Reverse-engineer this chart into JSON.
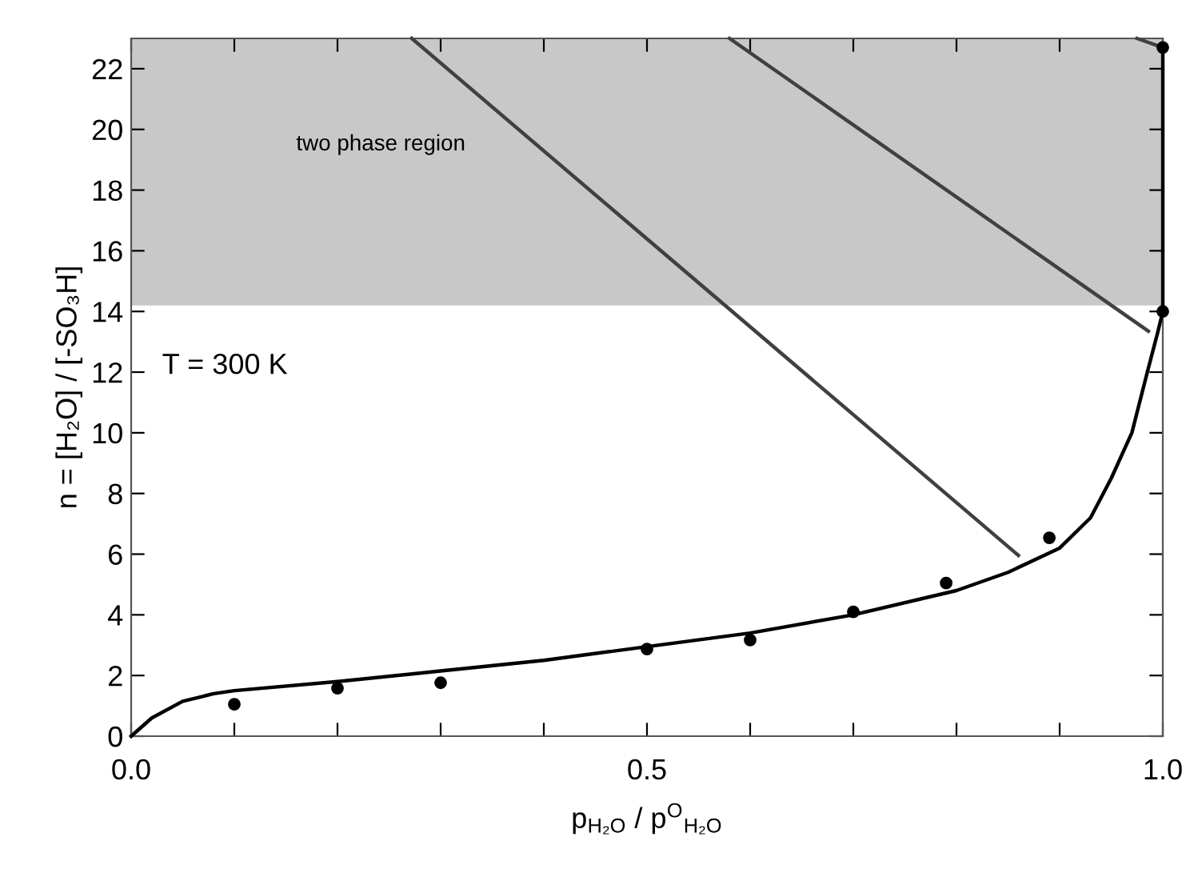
{
  "chart_data": {
    "type": "line",
    "xlabel": "p$_{H₂O}$ / p$^{O}$$_{H₂O}$",
    "ylabel": "n = [H₂O] / [-SO₃H]",
    "xlim": [
      0,
      1
    ],
    "ylim": [
      0,
      23
    ],
    "xticks": [
      {
        "value": 0,
        "label": "0.0"
      },
      {
        "value": 0.1,
        "label": null
      },
      {
        "value": 0.2,
        "label": null
      },
      {
        "value": 0.3,
        "label": null
      },
      {
        "value": 0.4,
        "label": null
      },
      {
        "value": 0.5,
        "label": "0.5"
      },
      {
        "value": 0.6,
        "label": null
      },
      {
        "value": 0.7,
        "label": null
      },
      {
        "value": 0.8,
        "label": null
      },
      {
        "value": 0.9,
        "label": null
      },
      {
        "value": 1.0,
        "label": "1.0"
      }
    ],
    "yticks": [
      0,
      2,
      4,
      6,
      8,
      10,
      12,
      14,
      16,
      18,
      20,
      22
    ],
    "grid": false,
    "legend": false,
    "bands": [
      {
        "axis": "y",
        "from": 14.2,
        "to": 23,
        "label": "two phase region",
        "color": "#c8c8c8"
      }
    ],
    "annotations": [
      "T = 300 K"
    ],
    "series": [
      {
        "color": "#000000",
        "x": [
          0,
          0.02,
          0.05,
          0.08,
          0.1,
          0.2,
          0.3,
          0.4,
          0.5,
          0.6,
          0.7,
          0.8,
          0.85,
          0.9,
          0.93,
          0.95,
          0.97,
          0.985,
          0.995,
          1.0
        ],
        "values": [
          0,
          0.6,
          1.15,
          1.4,
          1.5,
          1.8,
          2.15,
          2.5,
          2.95,
          3.4,
          4.0,
          4.8,
          5.4,
          6.2,
          7.2,
          8.5,
          10,
          12,
          13.3,
          14
        ]
      },
      {
        "color": "#000000",
        "x": [
          1.0,
          1.0
        ],
        "values": [
          14,
          22.7
        ]
      },
      {
        "type": "scatter",
        "color": "#000000",
        "marker": "circle",
        "x": [
          0.1,
          0.2,
          0.3,
          0.5,
          0.6,
          0.7,
          0.79,
          0.89,
          1.0,
          1.0
        ],
        "values": [
          1.05,
          1.58,
          1.76,
          2.87,
          3.17,
          4.1,
          5.05,
          6.54,
          14,
          22.7
        ]
      },
      {
        "color": "#404040",
        "x": [
          0.272,
          0.86
        ],
        "values": [
          23,
          5.96
        ]
      },
      {
        "color": "#404040",
        "x": [
          0.58,
          0.986
        ],
        "values": [
          23,
          13.35
        ]
      },
      {
        "color": "#404040",
        "x": [
          0.975,
          1.0
        ],
        "values": [
          23,
          22.7
        ]
      }
    ]
  }
}
